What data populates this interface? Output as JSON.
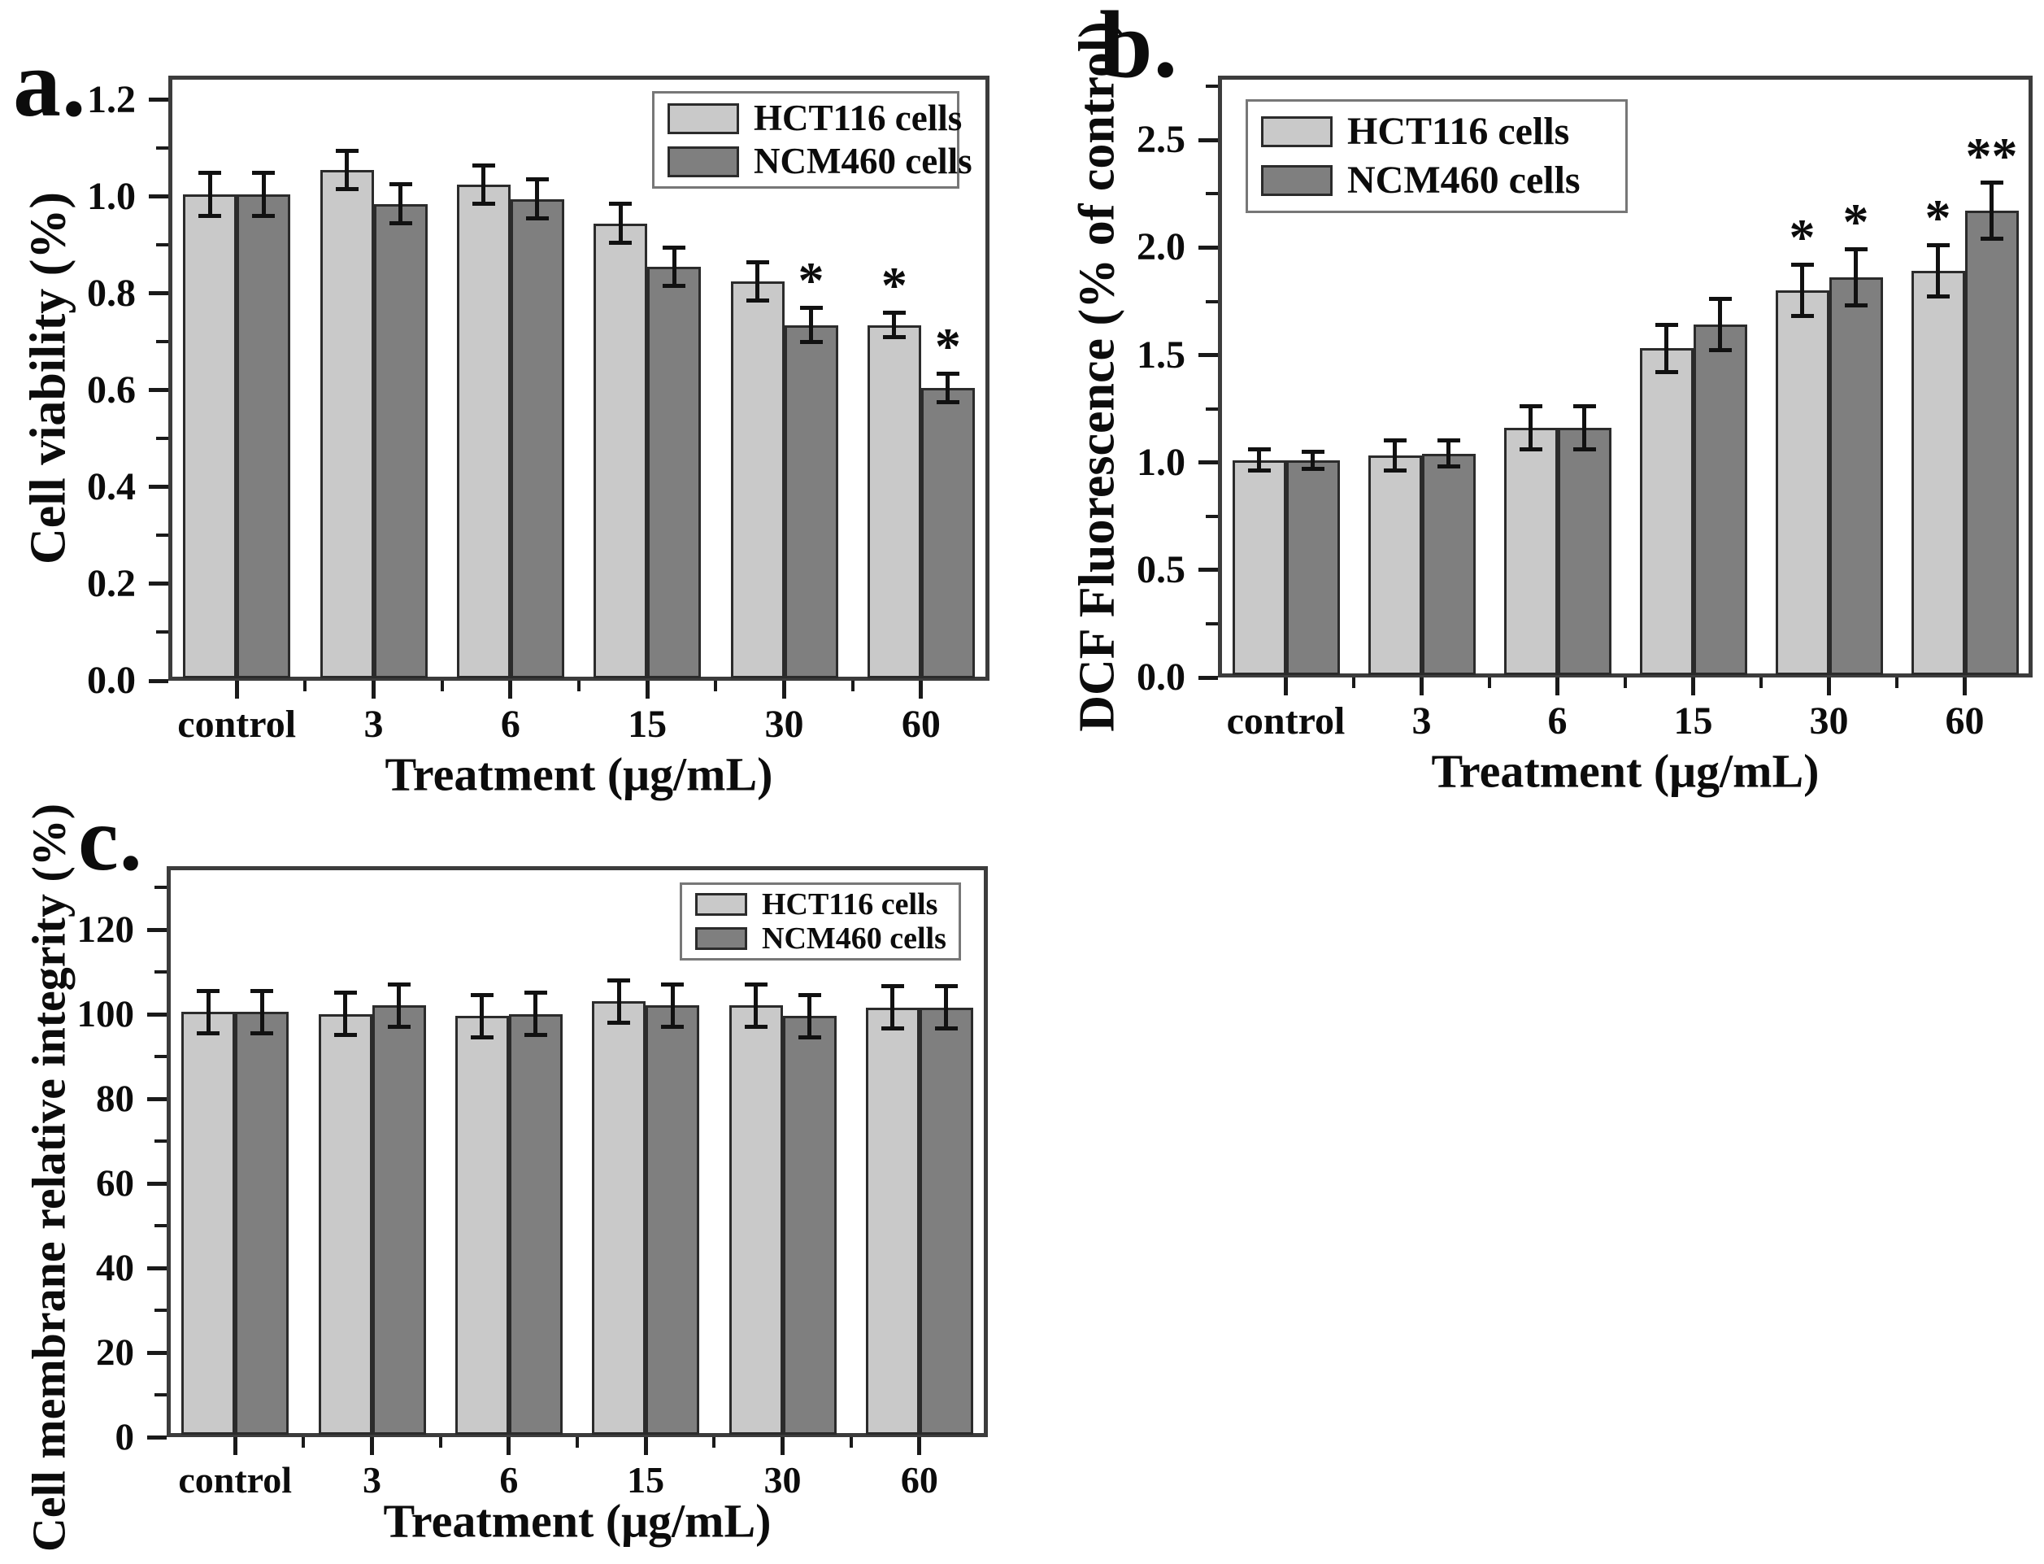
{
  "figure": {
    "background": "#ffffff",
    "text_color": "#0c0c0c",
    "bar_border_color": "#2b2b2b",
    "axis_color": "#3c3c3c",
    "error_bar_color": "#111111"
  },
  "chart_data": [
    {
      "id": "a",
      "type": "bar",
      "panel_label": "a.",
      "ylabel": "Cell viability (%)",
      "xlabel": "Treatment (μg/mL)",
      "categories": [
        "control",
        "3",
        "6",
        "15",
        "30",
        "60"
      ],
      "ylim": [
        0,
        1.25
      ],
      "yticks": [
        0,
        0.2,
        0.4,
        0.6,
        0.8,
        1.0,
        1.2
      ],
      "ytick_labels": [
        "0.0",
        "0.2",
        "0.4",
        "0.6",
        "0.8",
        "1.0",
        "1.2"
      ],
      "minor_tick_step": 0.1,
      "grid": false,
      "legend_position": "top-right",
      "legend_labels": [
        "HCT116 cells",
        "NCM460 cells"
      ],
      "series": [
        {
          "name": "HCT116 cells",
          "color": "#c9c9c9",
          "values": [
            1.0,
            1.05,
            1.02,
            0.94,
            0.82,
            0.73
          ],
          "errors": [
            0.045,
            0.04,
            0.04,
            0.04,
            0.04,
            0.025
          ],
          "sig": [
            "",
            "",
            "",
            "",
            "",
            "*"
          ]
        },
        {
          "name": "NCM460 cells",
          "color": "#7f7f7f",
          "values": [
            1.0,
            0.98,
            0.99,
            0.85,
            0.73,
            0.6
          ],
          "errors": [
            0.045,
            0.04,
            0.04,
            0.04,
            0.035,
            0.03
          ],
          "sig": [
            "",
            "",
            "",
            "",
            "*",
            "*"
          ]
        }
      ]
    },
    {
      "id": "b",
      "type": "bar",
      "panel_label": "b.",
      "ylabel": "DCF Fluorescence (% of control)",
      "xlabel": "Treatment (μg/mL)",
      "categories": [
        "control",
        "3",
        "6",
        "15",
        "30",
        "60"
      ],
      "ylim": [
        0,
        2.8
      ],
      "yticks": [
        0,
        0.5,
        1.0,
        1.5,
        2.0,
        2.5
      ],
      "ytick_labels": [
        "0.0",
        "0.5",
        "1.0",
        "1.5",
        "2.0",
        "2.5"
      ],
      "minor_tick_step": 0.25,
      "grid": false,
      "legend_position": "top-left",
      "legend_labels": [
        "HCT116 cells",
        "NCM460 cells"
      ],
      "series": [
        {
          "name": "HCT116 cells",
          "color": "#c9c9c9",
          "values": [
            1.0,
            1.02,
            1.15,
            1.52,
            1.79,
            1.88
          ],
          "errors": [
            0.05,
            0.07,
            0.1,
            0.11,
            0.12,
            0.12
          ],
          "sig": [
            "",
            "",
            "",
            "",
            "*",
            "*"
          ]
        },
        {
          "name": "NCM460 cells",
          "color": "#7f7f7f",
          "values": [
            1.0,
            1.03,
            1.15,
            1.63,
            1.85,
            2.16
          ],
          "errors": [
            0.04,
            0.06,
            0.1,
            0.12,
            0.13,
            0.13
          ],
          "sig": [
            "",
            "",
            "",
            "",
            "*",
            "**"
          ]
        }
      ]
    },
    {
      "id": "c",
      "type": "bar",
      "panel_label": "c.",
      "ylabel": "Cell membrane relative integrity (%)",
      "xlabel": "Treatment (μg/mL)",
      "categories": [
        "control",
        "3",
        "6",
        "15",
        "30",
        "60"
      ],
      "ylim": [
        0,
        135
      ],
      "yticks": [
        0,
        20,
        40,
        60,
        80,
        100,
        120
      ],
      "ytick_labels": [
        "0",
        "20",
        "40",
        "60",
        "80",
        "100",
        "120"
      ],
      "minor_tick_step": 10,
      "grid": false,
      "legend_position": "top-right",
      "legend_labels": [
        "HCT116 cells",
        "NCM460 cells"
      ],
      "series": [
        {
          "name": "HCT116 cells",
          "color": "#c9c9c9",
          "values": [
            100,
            99.5,
            99,
            102.5,
            101.5,
            101
          ],
          "errors": [
            5,
            5,
            5,
            5,
            5,
            5
          ],
          "sig": [
            "",
            "",
            "",
            "",
            "",
            ""
          ]
        },
        {
          "name": "NCM460 cells",
          "color": "#7f7f7f",
          "values": [
            100,
            101.5,
            99.5,
            101.5,
            99,
            101
          ],
          "errors": [
            5,
            5,
            5,
            5,
            5,
            5
          ],
          "sig": [
            "",
            "",
            "",
            "",
            "",
            ""
          ]
        }
      ]
    }
  ]
}
